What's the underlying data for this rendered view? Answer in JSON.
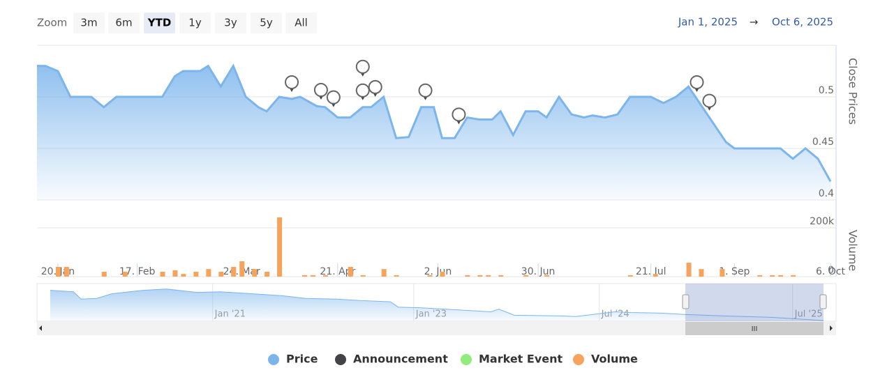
{
  "zoom": {
    "label": "Zoom",
    "buttons": [
      "3m",
      "6m",
      "YTD",
      "1y",
      "3y",
      "5y",
      "All"
    ],
    "selected": 2
  },
  "range": {
    "from": "Jan 1, 2025",
    "arrow": "→",
    "to": "Oct 6, 2025"
  },
  "chart_data": [
    {
      "type": "line",
      "y_axis_title": "Close Prices",
      "xlim": [
        0,
        190
      ],
      "ylim": [
        0.4,
        0.55
      ],
      "yticks": [
        0.4,
        0.45,
        0.5
      ],
      "grid": true,
      "series": [
        {
          "name": "Price",
          "color": "#7cb5ec",
          "x": [
            0,
            2,
            5,
            8,
            13,
            16,
            19,
            30,
            33,
            35,
            39,
            41,
            44,
            47,
            50,
            53,
            55,
            58,
            61,
            63,
            67,
            69,
            72,
            75,
            78,
            80,
            83,
            86,
            89,
            92,
            95,
            97,
            100,
            103,
            106,
            109,
            111,
            114,
            117,
            120,
            122,
            125,
            128,
            131,
            133,
            136,
            139,
            142,
            147,
            150,
            153,
            156,
            165,
            167,
            178,
            181,
            184,
            187,
            190
          ],
          "values": [
            0.53,
            0.53,
            0.525,
            0.5,
            0.5,
            0.49,
            0.5,
            0.5,
            0.52,
            0.525,
            0.525,
            0.53,
            0.51,
            0.53,
            0.5,
            0.49,
            0.486,
            0.5,
            0.498,
            0.5,
            0.491,
            0.49,
            0.48,
            0.48,
            0.49,
            0.49,
            0.5,
            0.46,
            0.461,
            0.49,
            0.49,
            0.46,
            0.46,
            0.48,
            0.478,
            0.478,
            0.486,
            0.463,
            0.486,
            0.486,
            0.48,
            0.5,
            0.483,
            0.48,
            0.482,
            0.48,
            0.483,
            0.5,
            0.5,
            0.494,
            0.5,
            0.51,
            0.456,
            0.45,
            0.45,
            0.44,
            0.45,
            0.44,
            0.418
          ]
        },
        {
          "name": "Announcement",
          "color": "#434348",
          "x": [
            61,
            68,
            71,
            78,
            78,
            81,
            93,
            101,
            158,
            161
          ]
        },
        {
          "name": "Market Event",
          "color": "#90ed7d",
          "x": []
        }
      ]
    },
    {
      "type": "bar",
      "y_axis_title": "Volume",
      "xlim": [
        0,
        190
      ],
      "ylim": [
        0,
        300000
      ],
      "yticks": [
        0,
        {
          "value": 200000,
          "label": "200k"
        }
      ],
      "grid": true,
      "xticks": [
        {
          "value": 5,
          "label": "20. Jan"
        },
        {
          "value": 24,
          "label": "17. Feb"
        },
        {
          "value": 49,
          "label": "24. Mar"
        },
        {
          "value": 72,
          "label": "21. Apr"
        },
        {
          "value": 96,
          "label": "2. Jun"
        },
        {
          "value": 120,
          "label": "30. Jun"
        },
        {
          "value": 147,
          "label": "21. Jul"
        },
        {
          "value": 167,
          "label": "1. Sep"
        },
        {
          "value": 190,
          "label": "6. Oct"
        }
      ],
      "series": [
        {
          "name": "Volume",
          "color": "#f7a35c",
          "x": [
            5,
            7,
            16,
            21,
            30,
            33,
            35,
            38,
            41,
            44,
            47,
            49,
            52,
            55,
            58,
            64,
            66,
            69,
            75,
            78,
            83,
            86,
            94,
            97,
            103,
            106,
            108,
            111,
            117,
            122,
            142,
            148,
            156,
            159,
            164,
            173,
            176,
            178,
            181
          ],
          "values": [
            40000,
            40000,
            20000,
            20000,
            20000,
            26000,
            11000,
            20000,
            31000,
            20000,
            40000,
            63000,
            31000,
            20000,
            243000,
            6000,
            6000,
            6000,
            40000,
            6000,
            31000,
            6000,
            6000,
            20000,
            6000,
            6000,
            6000,
            6000,
            6000,
            6000,
            6000,
            11000,
            57000,
            31000,
            31000,
            6000,
            6000,
            6000,
            6000
          ]
        }
      ]
    },
    {
      "type": "line",
      "xlim": [
        0,
        100
      ],
      "ylim": [
        0.3,
        0.6
      ],
      "xticks": [
        {
          "value": 21,
          "label": "Jan '21"
        },
        {
          "value": 47,
          "label": "Jan '23"
        },
        {
          "value": 71,
          "label": "Jul '24"
        },
        {
          "value": 96,
          "label": "Jul '25"
        }
      ],
      "series": [
        {
          "color": "#7cb5ec",
          "x": [
            0,
            3,
            4,
            6,
            8,
            12,
            15,
            19,
            22,
            26,
            30,
            33,
            37,
            40,
            44,
            45,
            48,
            51,
            57,
            58,
            60,
            66,
            68,
            73,
            75,
            79,
            82,
            87,
            93,
            100
          ],
          "values": [
            0.556,
            0.544,
            0.483,
            0.489,
            0.528,
            0.556,
            0.567,
            0.539,
            0.544,
            0.528,
            0.511,
            0.489,
            0.483,
            0.472,
            0.461,
            0.417,
            0.411,
            0.4,
            0.378,
            0.4,
            0.35,
            0.344,
            0.339,
            0.378,
            0.372,
            0.367,
            0.356,
            0.344,
            0.333,
            0.306
          ]
        }
      ]
    }
  ]
}
